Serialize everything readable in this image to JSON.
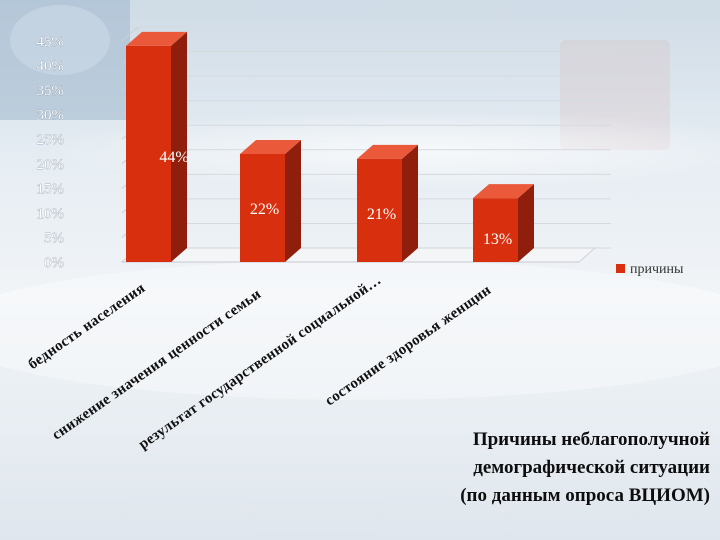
{
  "chart_data": {
    "type": "bar",
    "categories": [
      "бедность населения",
      "снижение значения ценности семьи",
      "результат государственной социальной…",
      "состояние здоровья женщин"
    ],
    "series": [
      {
        "name": "причины",
        "values": [
          44,
          22,
          21,
          13
        ]
      }
    ],
    "data_labels": [
      "44%",
      "22%",
      "21%",
      "13%"
    ],
    "y_ticks": [
      "0%",
      "5%",
      "10%",
      "15%",
      "20%",
      "25%",
      "30%",
      "35%",
      "40%",
      "45%"
    ],
    "ylim": [
      0,
      45
    ],
    "grid": true,
    "legend": "right",
    "colors": {
      "bar_front": "#d8300f",
      "bar_side": "#8f1f0c",
      "bar_top": "#e9593a"
    }
  },
  "caption": {
    "line1": "Причины неблагополучной",
    "line2": "демографической ситуации",
    "line3": "(по данным опроса ВЦИОМ)"
  }
}
